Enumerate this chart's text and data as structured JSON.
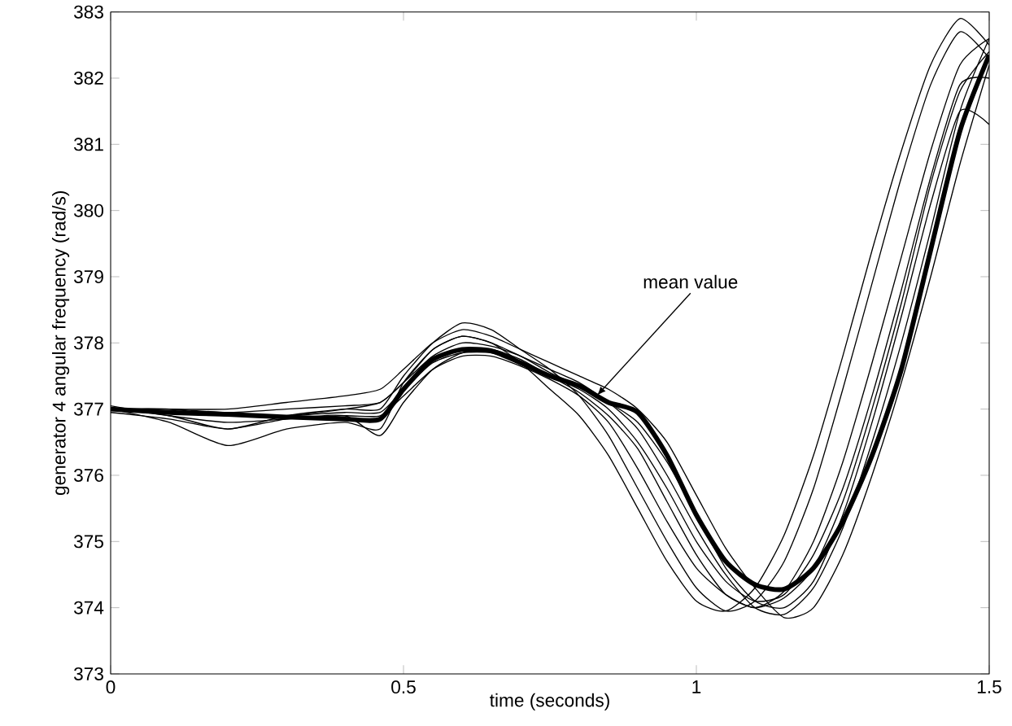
{
  "chart_data": {
    "type": "line",
    "xlabel": "time (seconds)",
    "ylabel": "generator 4 angular frequency (rad/s)",
    "x": [
      0,
      0.1,
      0.2,
      0.3,
      0.4,
      0.46,
      0.5,
      0.55,
      0.6,
      0.65,
      0.7,
      0.75,
      0.8,
      0.85,
      0.9,
      0.95,
      1.0,
      1.05,
      1.1,
      1.15,
      1.2,
      1.25,
      1.3,
      1.35,
      1.4,
      1.45,
      1.5
    ],
    "series": [
      {
        "color": "#000000",
        "values": [
          377,
          376.8,
          376.45,
          376.7,
          376.8,
          376.7,
          377.4,
          377.9,
          378.1,
          378.0,
          377.7,
          377.3,
          376.9,
          376.3,
          375.5,
          374.7,
          374.1,
          373.95,
          374.3,
          375.1,
          376.3,
          377.8,
          379.4,
          380.9,
          382.2,
          382.9,
          382.5
        ]
      },
      {
        "color": "#000000",
        "values": [
          377,
          376.9,
          376.7,
          376.9,
          377.0,
          377.0,
          377.5,
          378.0,
          378.3,
          378.2,
          377.9,
          377.6,
          377.2,
          376.6,
          375.8,
          375.0,
          374.3,
          373.95,
          374.1,
          374.7,
          375.8,
          377.3,
          378.9,
          380.5,
          381.9,
          382.7,
          382.3
        ]
      },
      {
        "color": "#000000",
        "values": [
          377,
          377.0,
          376.9,
          376.9,
          377.0,
          377.1,
          377.4,
          377.9,
          378.1,
          378.0,
          377.8,
          377.6,
          377.4,
          377.1,
          376.7,
          376.0,
          375.2,
          374.5,
          374.0,
          373.9,
          374.3,
          375.2,
          376.5,
          378.0,
          379.7,
          381.5,
          382.6
        ]
      },
      {
        "color": "#000000",
        "values": [
          377,
          377.0,
          377.0,
          377.1,
          377.2,
          377.3,
          377.6,
          378.0,
          378.2,
          378.1,
          377.9,
          377.7,
          377.5,
          377.3,
          377.0,
          376.5,
          375.7,
          374.9,
          374.3,
          373.85,
          374.0,
          374.8,
          376.0,
          377.4,
          379.0,
          380.7,
          382.2
        ]
      },
      {
        "color": "#000000",
        "values": [
          377,
          376.95,
          376.9,
          376.9,
          376.95,
          376.95,
          377.3,
          377.7,
          377.85,
          377.85,
          377.7,
          377.5,
          377.3,
          377.0,
          376.5,
          375.8,
          375.0,
          374.4,
          374.1,
          374.2,
          374.8,
          375.8,
          377.2,
          378.8,
          380.5,
          381.9,
          382.0
        ]
      },
      {
        "color": "#000000",
        "values": [
          377.05,
          376.9,
          376.8,
          376.85,
          376.9,
          376.9,
          377.2,
          377.6,
          377.8,
          377.8,
          377.65,
          377.45,
          377.2,
          376.8,
          376.1,
          375.3,
          374.6,
          374.2,
          374.0,
          374.25,
          375.0,
          376.2,
          377.7,
          379.3,
          380.9,
          382.2,
          382.6
        ]
      },
      {
        "color": "#000000",
        "values": [
          377,
          377.0,
          376.95,
          377.0,
          377.05,
          377.1,
          377.4,
          377.8,
          378.0,
          377.95,
          377.8,
          377.55,
          377.35,
          377.1,
          376.8,
          376.2,
          375.4,
          374.6,
          374.1,
          374.0,
          374.4,
          375.4,
          376.8,
          378.4,
          380.1,
          381.5,
          381.3
        ]
      },
      {
        "color": "#000000",
        "values": [
          376.95,
          376.85,
          376.7,
          376.85,
          376.9,
          376.6,
          377.1,
          377.6,
          377.85,
          377.9,
          377.75,
          377.5,
          377.25,
          376.9,
          376.4,
          375.6,
          374.8,
          374.2,
          374.0,
          374.15,
          374.6,
          375.6,
          377.0,
          378.6,
          380.4,
          381.8,
          382.4
        ]
      },
      {
        "color": "#000000",
        "values": [
          377,
          376.95,
          376.92,
          376.88,
          376.85,
          376.85,
          377.3,
          377.75,
          377.9,
          377.88,
          377.7,
          377.5,
          377.35,
          377.1,
          376.95,
          376.3,
          375.4,
          374.7,
          374.35,
          374.28,
          374.6,
          375.3,
          376.3,
          377.6,
          379.4,
          381.2,
          382.35
        ]
      }
    ],
    "annotations": [
      {
        "text": "mean value",
        "x": 0.83,
        "y": 377.2
      }
    ],
    "xlim": [
      0,
      1.5
    ],
    "ylim": [
      373,
      383
    ],
    "xticks": [
      0,
      0.5,
      1,
      1.5
    ],
    "yticks": [
      373,
      374,
      375,
      376,
      377,
      378,
      379,
      380,
      381,
      382,
      383
    ],
    "grid": false,
    "marker": "none",
    "line_style": "solid"
  }
}
